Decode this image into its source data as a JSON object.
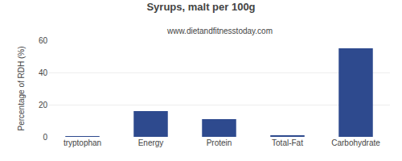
{
  "chart_data": {
    "type": "bar",
    "title": "Syrups, malt per 100g",
    "subtitle": "www.dietandfitnesstoday.com",
    "categories": [
      "tryptophan",
      "Energy",
      "Protein",
      "Total-Fat",
      "Carbohydrate"
    ],
    "values": [
      0.3,
      16,
      11,
      1,
      55
    ],
    "color": "#2e4a8e",
    "ylabel": "Percentage of RDH (%)",
    "ylim": [
      0,
      60
    ],
    "yticks": [
      0,
      20,
      40,
      60
    ],
    "grid": true
  }
}
